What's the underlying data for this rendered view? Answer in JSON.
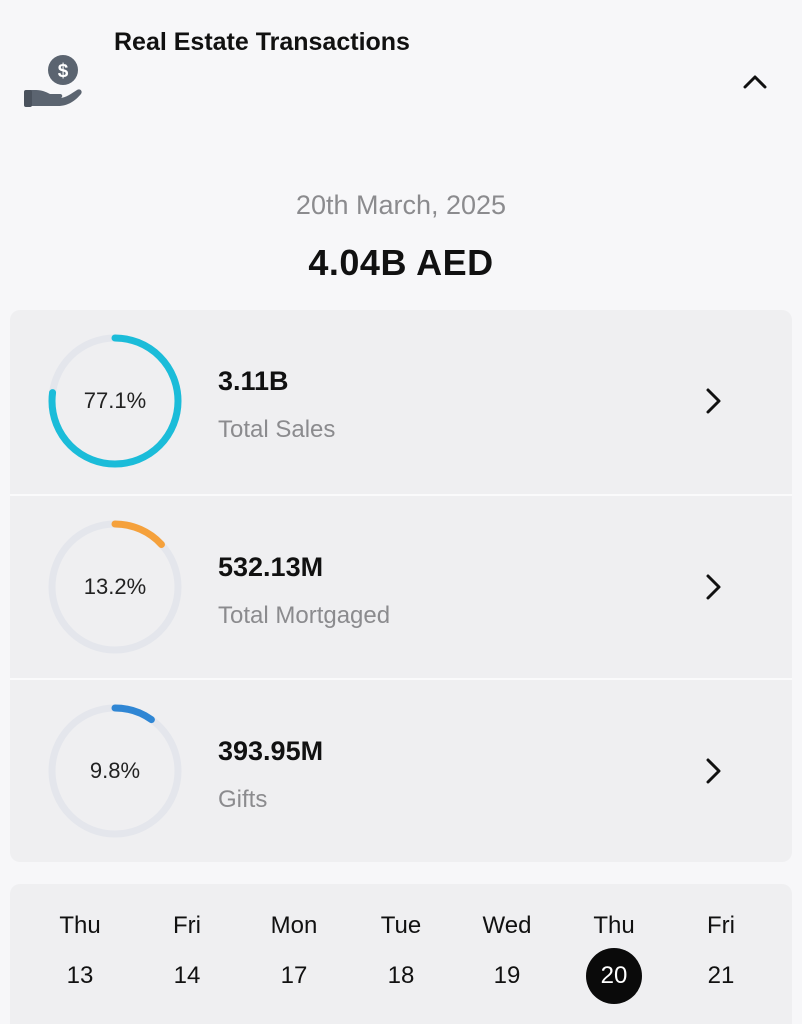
{
  "header": {
    "title": "Real Estate Transactions",
    "icon": "hand-dollar-icon",
    "collapse_icon": "chevron-up-icon"
  },
  "summary": {
    "date": "20th March, 2025",
    "total": "4.04B AED"
  },
  "stats": [
    {
      "percent_label": "77.1%",
      "percent": 77.1,
      "value": "3.11B",
      "label": "Total Sales",
      "color": "#1bbcd9"
    },
    {
      "percent_label": "13.2%",
      "percent": 13.2,
      "value": "532.13M",
      "label": "Total Mortgaged",
      "color": "#f5a13c"
    },
    {
      "percent_label": "9.8%",
      "percent": 9.8,
      "value": "393.95M",
      "label": "Gifts",
      "color": "#2f86d4"
    }
  ],
  "ring_track_color": "#e4e6ec",
  "days": [
    {
      "name": "Thu",
      "num": "13",
      "selected": false
    },
    {
      "name": "Fri",
      "num": "14",
      "selected": false
    },
    {
      "name": "Mon",
      "num": "17",
      "selected": false
    },
    {
      "name": "Tue",
      "num": "18",
      "selected": false
    },
    {
      "name": "Wed",
      "num": "19",
      "selected": false
    },
    {
      "name": "Thu",
      "num": "20",
      "selected": true
    },
    {
      "name": "Fri",
      "num": "21",
      "selected": false
    }
  ]
}
